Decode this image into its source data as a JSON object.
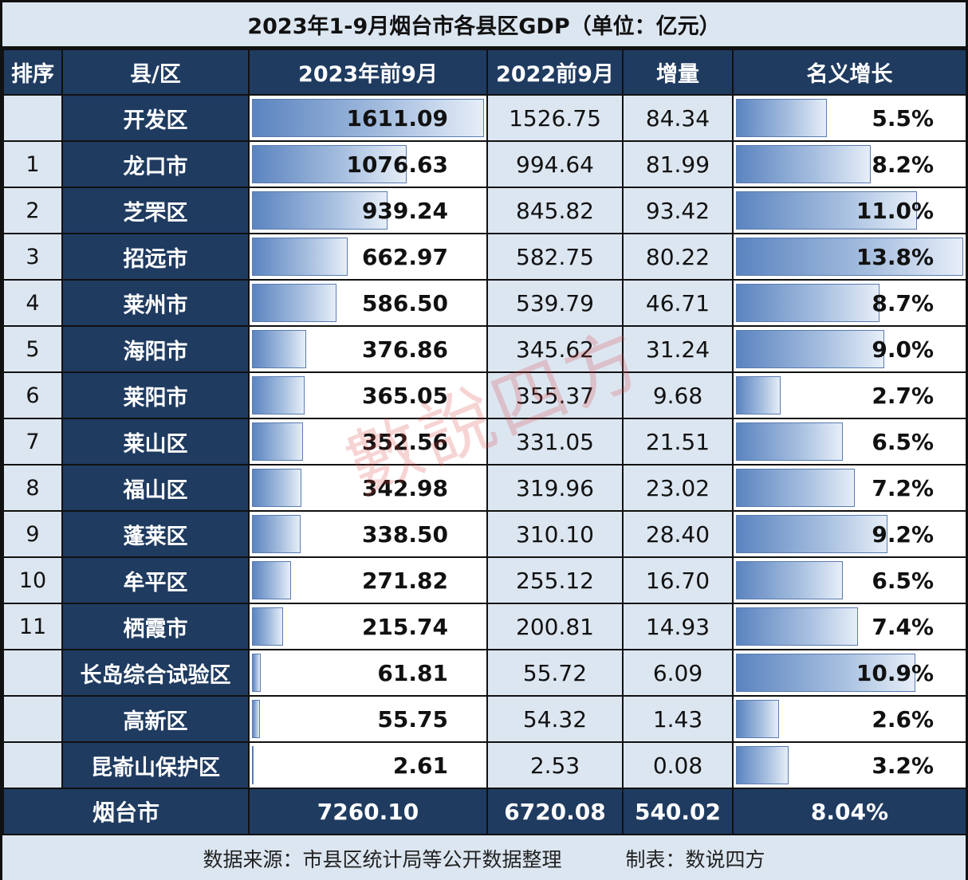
{
  "title": "2023年1-9月烟台市各县区GDP（单位：亿元）",
  "columns": {
    "rank": "排序",
    "name": "县/区",
    "gdp_2023": "2023年前9月",
    "gdp_2022": "2022前9月",
    "increase": "增量",
    "growth": "名义增长"
  },
  "rows": [
    {
      "rank": "",
      "name": "开发区",
      "gdp_2023": "1611.09",
      "gdp_2022": "1526.75",
      "increase": "84.34",
      "growth": "5.5%"
    },
    {
      "rank": "1",
      "name": "龙口市",
      "gdp_2023": "1076.63",
      "gdp_2022": "994.64",
      "increase": "81.99",
      "growth": "8.2%"
    },
    {
      "rank": "2",
      "name": "芝罘区",
      "gdp_2023": "939.24",
      "gdp_2022": "845.82",
      "increase": "93.42",
      "growth": "11.0%"
    },
    {
      "rank": "3",
      "name": "招远市",
      "gdp_2023": "662.97",
      "gdp_2022": "582.75",
      "increase": "80.22",
      "growth": "13.8%"
    },
    {
      "rank": "4",
      "name": "莱州市",
      "gdp_2023": "586.50",
      "gdp_2022": "539.79",
      "increase": "46.71",
      "growth": "8.7%"
    },
    {
      "rank": "5",
      "name": "海阳市",
      "gdp_2023": "376.86",
      "gdp_2022": "345.62",
      "increase": "31.24",
      "growth": "9.0%"
    },
    {
      "rank": "6",
      "name": "莱阳市",
      "gdp_2023": "365.05",
      "gdp_2022": "355.37",
      "increase": "9.68",
      "growth": "2.7%"
    },
    {
      "rank": "7",
      "name": "莱山区",
      "gdp_2023": "352.56",
      "gdp_2022": "331.05",
      "increase": "21.51",
      "growth": "6.5%"
    },
    {
      "rank": "8",
      "name": "福山区",
      "gdp_2023": "342.98",
      "gdp_2022": "319.96",
      "increase": "23.02",
      "growth": "7.2%"
    },
    {
      "rank": "9",
      "name": "蓬莱区",
      "gdp_2023": "338.50",
      "gdp_2022": "310.10",
      "increase": "28.40",
      "growth": "9.2%"
    },
    {
      "rank": "10",
      "name": "牟平区",
      "gdp_2023": "271.82",
      "gdp_2022": "255.12",
      "increase": "16.70",
      "growth": "6.5%"
    },
    {
      "rank": "11",
      "name": "栖霞市",
      "gdp_2023": "215.74",
      "gdp_2022": "200.81",
      "increase": "14.93",
      "growth": "7.4%"
    },
    {
      "rank": "",
      "name": "长岛综合试验区",
      "gdp_2023": "61.81",
      "gdp_2022": "55.72",
      "increase": "6.09",
      "growth": "10.9%"
    },
    {
      "rank": "",
      "name": "高新区",
      "gdp_2023": "55.75",
      "gdp_2022": "54.32",
      "increase": "1.43",
      "growth": "2.6%"
    },
    {
      "rank": "",
      "name": "昆嵛山保护区",
      "gdp_2023": "2.61",
      "gdp_2022": "2.53",
      "increase": "0.08",
      "growth": "3.2%"
    }
  ],
  "total": {
    "name": "烟台市",
    "gdp_2023": "7260.10",
    "gdp_2022": "6720.08",
    "increase": "540.02",
    "growth": "8.04%"
  },
  "footer": {
    "source": "数据来源：市县区统计局等公开数据整理",
    "author": "制表：数说四方"
  },
  "watermark": "數說四方",
  "colors": {
    "header_bg": "#1f3b60",
    "light_bg": "#dce6f1",
    "bar_start": "#5b84c0",
    "bar_end": "#e6eef8"
  },
  "chart_data": {
    "type": "table",
    "title": "2023年1-9月烟台市各县区GDP（单位：亿元）",
    "columns": [
      "排序",
      "县/区",
      "2023年前9月",
      "2022前9月",
      "增量",
      "名义增长"
    ],
    "categories": [
      "开发区",
      "龙口市",
      "芝罘区",
      "招远市",
      "莱州市",
      "海阳市",
      "莱阳市",
      "莱山区",
      "福山区",
      "蓬莱区",
      "牟平区",
      "栖霞市",
      "长岛综合试验区",
      "高新区",
      "昆嵛山保护区"
    ],
    "series": [
      {
        "name": "2023年前9月",
        "values": [
          1611.09,
          1076.63,
          939.24,
          662.97,
          586.5,
          376.86,
          365.05,
          352.56,
          342.98,
          338.5,
          271.82,
          215.74,
          61.81,
          55.75,
          2.61
        ]
      },
      {
        "name": "2022前9月",
        "values": [
          1526.75,
          994.64,
          845.82,
          582.75,
          539.79,
          345.62,
          355.37,
          331.05,
          319.96,
          310.1,
          255.12,
          200.81,
          55.72,
          54.32,
          2.53
        ]
      },
      {
        "name": "增量",
        "values": [
          84.34,
          81.99,
          93.42,
          80.22,
          46.71,
          31.24,
          9.68,
          21.51,
          23.02,
          28.4,
          16.7,
          14.93,
          6.09,
          1.43,
          0.08
        ]
      },
      {
        "name": "名义增长(%)",
        "values": [
          5.5,
          8.2,
          11.0,
          13.8,
          8.7,
          9.0,
          2.7,
          6.5,
          7.2,
          9.2,
          6.5,
          7.4,
          10.9,
          2.6,
          3.2
        ]
      }
    ],
    "total": {
      "name": "烟台市",
      "gdp_2023": 7260.1,
      "gdp_2022": 6720.08,
      "increase": 540.02,
      "growth_pct": 8.04
    },
    "notes": "In-cell data bars on 2023 GDP (max 1611.09) and nominal growth (max 13.8%)"
  }
}
